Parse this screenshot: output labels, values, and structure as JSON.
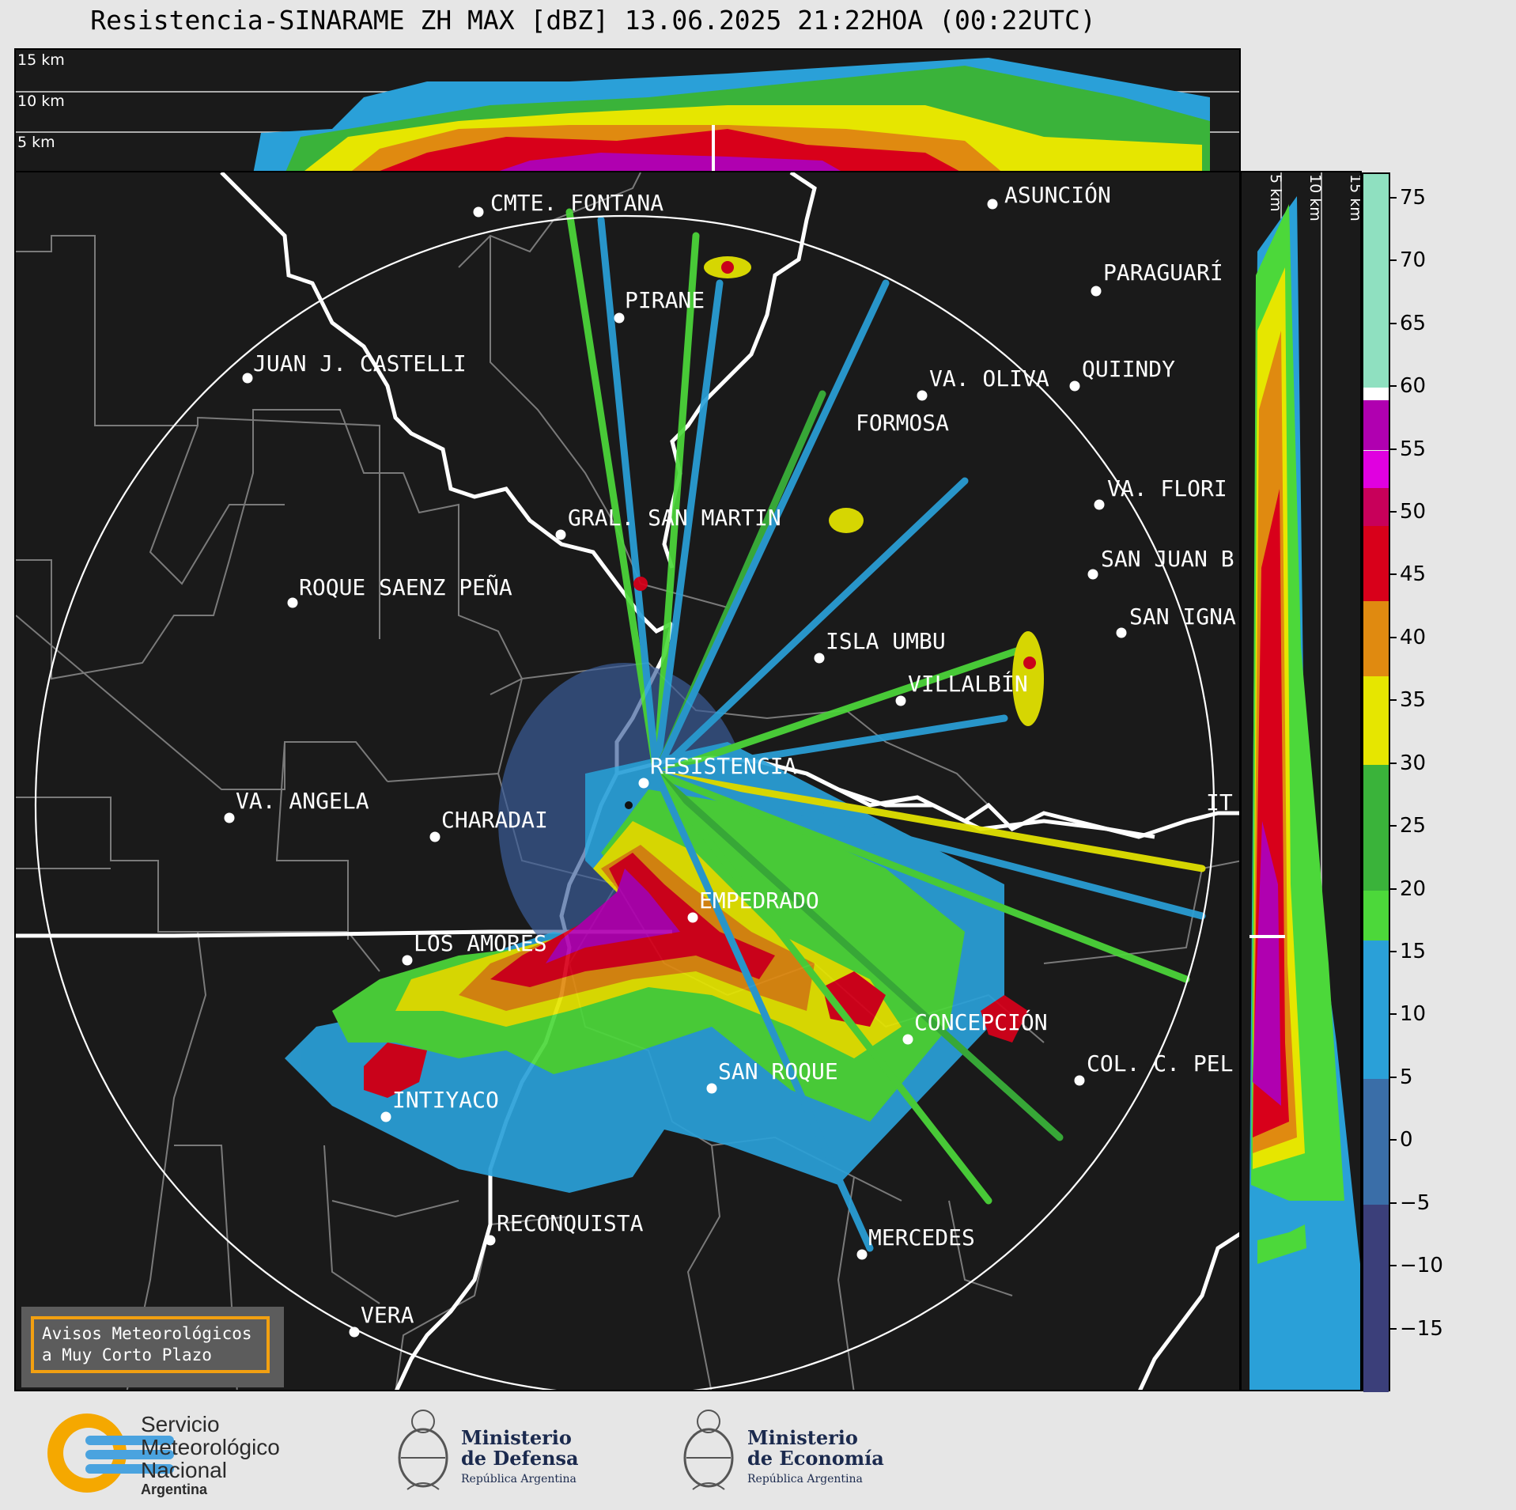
{
  "title": "Resistencia-SINARAME ZH MAX [dBZ] 13.06.2025 21:22HOA (00:22UTC)",
  "top_strip": {
    "height_labels": [
      "15 km",
      "10 km",
      "5 km"
    ]
  },
  "side_strip": {
    "height_labels": [
      "5 km",
      "10 km",
      "15 km"
    ]
  },
  "colorbar": {
    "unit": "dBZ",
    "ticks": [
      "75",
      "70",
      "65",
      "60",
      "55",
      "50",
      "45",
      "40",
      "35",
      "30",
      "25",
      "20",
      "15",
      "10",
      "5",
      "0",
      "−5",
      "−10",
      "−15"
    ],
    "stops": [
      {
        "from": 60,
        "to": 77,
        "color": "#8fe0c0"
      },
      {
        "from": 59,
        "to": 60,
        "color": "#ffffff"
      },
      {
        "from": 55,
        "to": 59,
        "color": "#b000b0"
      },
      {
        "from": 52,
        "to": 55,
        "color": "#e000e0"
      },
      {
        "from": 49,
        "to": 52,
        "color": "#c8005a"
      },
      {
        "from": 43,
        "to": 49,
        "color": "#d8001a"
      },
      {
        "from": 37,
        "to": 43,
        "color": "#e08a10"
      },
      {
        "from": 30,
        "to": 37,
        "color": "#e6e600"
      },
      {
        "from": 20,
        "to": 30,
        "color": "#3ab33a"
      },
      {
        "from": 16,
        "to": 20,
        "color": "#4cd83a"
      },
      {
        "from": 5,
        "to": 16,
        "color": "#2aa0d8"
      },
      {
        "from": -5,
        "to": 5,
        "color": "#3a6ea8"
      },
      {
        "from": -20,
        "to": -5,
        "color": "#3b3f7a"
      }
    ]
  },
  "cities": [
    {
      "name": "CMTE. FONTANA"
    },
    {
      "name": "ASUNCIÓN"
    },
    {
      "name": "PARAGUARÍ"
    },
    {
      "name": "PIRANE"
    },
    {
      "name": "JUAN J. CASTELLI"
    },
    {
      "name": "VA. OLIVA"
    },
    {
      "name": "QUIINDY"
    },
    {
      "name": "FORMOSA"
    },
    {
      "name": "VA. FLORI"
    },
    {
      "name": "GRAL. SAN MARTIN"
    },
    {
      "name": "SAN JUAN B"
    },
    {
      "name": "ROQUE SAENZ PEÑA"
    },
    {
      "name": "SAN IGNA"
    },
    {
      "name": "ISLA UMBU"
    },
    {
      "name": "VILLALBÍN"
    },
    {
      "name": "RESISTENCIA"
    },
    {
      "name": "VA. ANGELA"
    },
    {
      "name": "CHARADAI"
    },
    {
      "name": "IT"
    },
    {
      "name": "EMPEDRADO"
    },
    {
      "name": "LOS AMORES"
    },
    {
      "name": "CONCEPCIÓN"
    },
    {
      "name": "COL. C. PEL"
    },
    {
      "name": "SAN ROQUE"
    },
    {
      "name": "INTIYACO"
    },
    {
      "name": "RECONQUISTA"
    },
    {
      "name": "MERCEDES"
    },
    {
      "name": "VERA"
    }
  ],
  "warning_box": {
    "line1": "Avisos Meteorológicos",
    "line2": "a Muy Corto Plazo"
  },
  "footer": {
    "smn": {
      "line1": "Servicio",
      "line2": "Meteorológico",
      "line3": "Nacional",
      "line4": "Argentina"
    },
    "defensa": {
      "line1": "Ministerio",
      "line2": "de Defensa",
      "line3": "República Argentina"
    },
    "economia": {
      "line1": "Ministerio",
      "line2": "de Economía",
      "line3": "República Argentina"
    }
  }
}
